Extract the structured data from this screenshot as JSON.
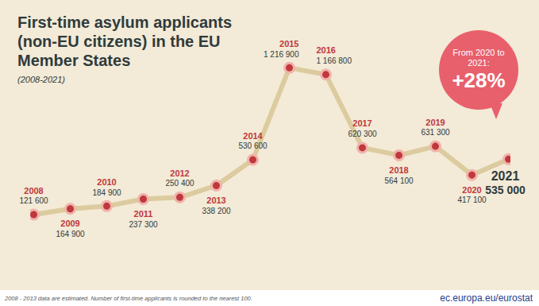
{
  "chart_data": {
    "type": "line",
    "title": "First-time asylum applicants (non-EU citizens) in the EU Member States",
    "subtitle": "(2008-2021)",
    "categories": [
      "2008",
      "2009",
      "2010",
      "2011",
      "2012",
      "2013",
      "2014",
      "2015",
      "2016",
      "2017",
      "2018",
      "2019",
      "2020",
      "2021"
    ],
    "values": [
      121600,
      164900,
      184900,
      237300,
      250400,
      338200,
      530600,
      1216900,
      1166800,
      620300,
      564100,
      631300,
      417100,
      535000
    ],
    "value_labels": [
      "121 600",
      "164 900",
      "184 900",
      "237 300",
      "250 400",
      "338 200",
      "530 600",
      "1 216 900",
      "1 166 800",
      "620 300",
      "564 100",
      "631 300",
      "417 100",
      "535 000"
    ],
    "color": "#dccb9e",
    "marker": "circle",
    "ylim": [
      0,
      1400000
    ],
    "tick_labels": false,
    "data_labels": true,
    "annotation": [
      "From 2020 to 2021:",
      "+28%"
    ],
    "note": "2008 - 2013 data are estimated. Number of first-time applicants is rounded to the nearest 100.",
    "source": "ec.europa.eu/eurostat"
  }
}
